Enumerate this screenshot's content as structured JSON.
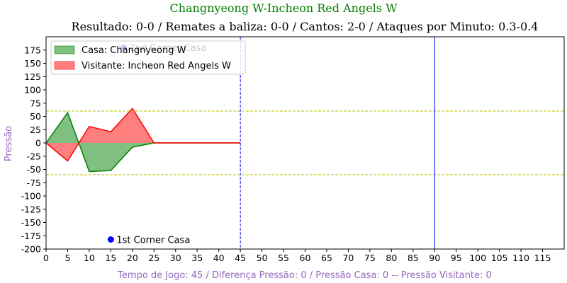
{
  "suptitle": "Changnyeong W-Incheon Red Angels W",
  "chart_data": {
    "type": "area",
    "title": "Resultado: 0-0 / Remates a baliza: 0-0 / Cantos: 2-0 / Ataques por Minuto: 0.3-0.4",
    "xlabel": "Tempo de Jogo: 45 / Diferença Pressão: 0 / Pressão Casa: 0 -- Pressão Visitante: 0",
    "ylabel": "Pressão",
    "xlim": [
      0,
      120
    ],
    "ylim": [
      -200,
      200
    ],
    "xticks": [
      0,
      5,
      10,
      15,
      20,
      25,
      30,
      35,
      40,
      45,
      50,
      55,
      60,
      65,
      70,
      75,
      80,
      85,
      90,
      95,
      100,
      105,
      110,
      115
    ],
    "yticks": [
      -200,
      -175,
      -150,
      -125,
      -100,
      -75,
      -50,
      -25,
      0,
      25,
      50,
      75,
      100,
      125,
      150,
      175
    ],
    "x": [
      0,
      5,
      10,
      15,
      20,
      25,
      30,
      35,
      40,
      45
    ],
    "series": [
      {
        "name": "Casa: Changnyeong W",
        "color": "#008000",
        "fill": "#008000",
        "values": [
          0,
          57,
          -54,
          -52,
          -8,
          0,
          0,
          0,
          0,
          0
        ]
      },
      {
        "name": "Visitante: Incheon Red Angels W",
        "color": "#ff0000",
        "fill": "#ff0000",
        "values": [
          0,
          -34,
          31,
          21,
          65,
          0,
          0,
          0,
          0,
          0
        ]
      }
    ],
    "hlines": [
      {
        "y": 60,
        "color": "#bfbf00",
        "style": "dashed"
      },
      {
        "y": -60,
        "color": "#bfbf00",
        "style": "dashed"
      }
    ],
    "vlines": [
      {
        "x": 45,
        "color": "#0000ff",
        "style": "dashed"
      },
      {
        "x": 90,
        "color": "#0000ff",
        "style": "solid"
      }
    ],
    "annotations": [
      {
        "label": "2nd Corner Casa",
        "x": 18,
        "y": 180,
        "color": "#0000ff"
      },
      {
        "label": "1st Corner Casa",
        "x": 15,
        "y": -182,
        "color": "#0000ff"
      }
    ],
    "legend": "top-left",
    "grid": false
  }
}
